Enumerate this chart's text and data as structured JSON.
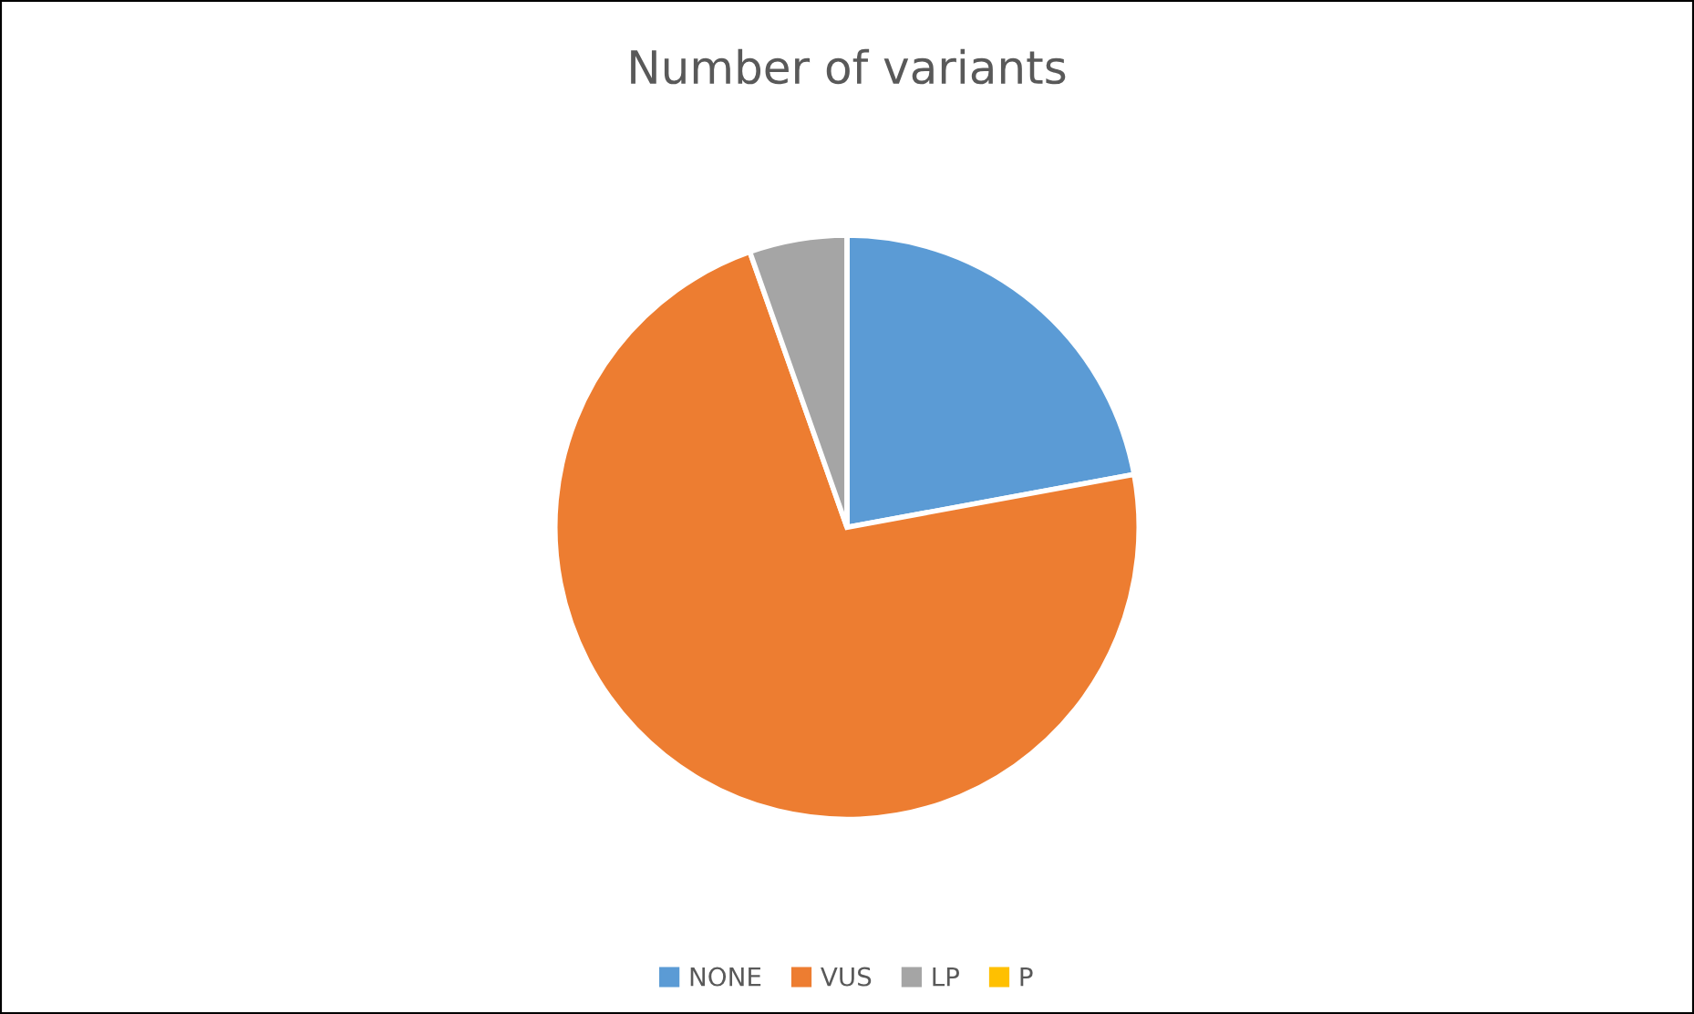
{
  "chart_data": {
    "type": "pie",
    "title": "Number of variants",
    "categories": [
      "NONE",
      "VUS",
      "LP",
      "P"
    ],
    "values": [
      22.1,
      72.5,
      5.4,
      0
    ],
    "colors": [
      "#5b9bd5",
      "#ed7d31",
      "#a5a5a5",
      "#ffc000"
    ],
    "legend": "bottom"
  }
}
